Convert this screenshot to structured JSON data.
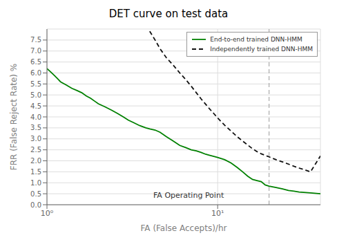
{
  "chart_data": {
    "type": "line",
    "title": "DET curve on test data",
    "x_label": "FA (False Accepts)/hr",
    "y_label": "FRR (False Reject Rate) %",
    "log": "x",
    "xlim": [
      1.0,
      40.0
    ],
    "xticks": [
      {
        "value": 1,
        "label": "10⁰"
      },
      {
        "value": 10,
        "label": "10¹"
      }
    ],
    "ylim": [
      0.0,
      8.0
    ],
    "yticks": [
      {
        "value": 0.0,
        "label": "0.0"
      },
      {
        "value": 0.5,
        "label": "0.5"
      },
      {
        "value": 1.0,
        "label": "1.0"
      },
      {
        "value": 1.5,
        "label": "1.5"
      },
      {
        "value": 2.0,
        "label": "2.0"
      },
      {
        "value": 2.5,
        "label": "2.5"
      },
      {
        "value": 3.0,
        "label": "3.0"
      },
      {
        "value": 3.5,
        "label": "3.5"
      },
      {
        "value": 4.0,
        "label": "4.0"
      },
      {
        "value": 4.5,
        "label": "4.5"
      },
      {
        "value": 5.0,
        "label": "5.0"
      },
      {
        "value": 5.5,
        "label": "5.5"
      },
      {
        "value": 6.0,
        "label": "6.0"
      },
      {
        "value": 6.5,
        "label": "6.5"
      },
      {
        "value": 7.0,
        "label": "7.0"
      },
      {
        "value": 7.5,
        "label": "7.5"
      }
    ],
    "grid": true,
    "legend": "upper right",
    "series": [
      {
        "name": "End-to-end trained DNN-HMM",
        "color": "#008000",
        "line_style": "solid",
        "x": [
          1.0,
          1.05,
          1.1,
          1.15,
          1.2,
          1.3,
          1.4,
          1.5,
          1.6,
          1.7,
          1.8,
          1.9,
          2.0,
          2.2,
          2.4,
          2.6,
          2.8,
          3.0,
          3.2,
          3.5,
          3.8,
          4.0,
          4.3,
          4.6,
          5.0,
          5.5,
          6.0,
          6.5,
          7.0,
          7.5,
          8.0,
          8.5,
          9.0,
          9.5,
          10.0,
          11.0,
          12.0,
          13.0,
          14.0,
          15.0,
          16.0,
          17.0,
          18.0,
          19.0,
          20.0,
          22.0,
          24.0,
          26.0,
          28.0,
          30.0,
          35.0,
          40.0
        ],
        "values": [
          6.2,
          6.05,
          5.9,
          5.75,
          5.6,
          5.45,
          5.3,
          5.2,
          5.1,
          4.95,
          4.85,
          4.72,
          4.6,
          4.45,
          4.3,
          4.15,
          4.0,
          3.85,
          3.75,
          3.6,
          3.5,
          3.45,
          3.4,
          3.3,
          3.1,
          2.9,
          2.7,
          2.6,
          2.5,
          2.45,
          2.38,
          2.3,
          2.25,
          2.2,
          2.15,
          2.05,
          1.9,
          1.7,
          1.5,
          1.3,
          1.15,
          1.1,
          1.05,
          0.9,
          0.85,
          0.78,
          0.72,
          0.65,
          0.62,
          0.58,
          0.54,
          0.5
        ]
      },
      {
        "name": "Independently trained DNN-HMM",
        "color": "#111111",
        "line_style": "dashed",
        "x": [
          4.0,
          4.3,
          4.6,
          5.0,
          5.5,
          6.0,
          6.5,
          7.0,
          7.5,
          8.0,
          8.5,
          9.0,
          9.5,
          10.0,
          11.0,
          12.0,
          13.0,
          14.0,
          15.0,
          16.0,
          17.0,
          18.0,
          19.0,
          20.0,
          22.0,
          24.0,
          26.0,
          28.0,
          30.0,
          35.0,
          40.0
        ],
        "values": [
          7.9,
          7.5,
          7.1,
          6.7,
          6.35,
          6.0,
          5.7,
          5.4,
          5.1,
          4.82,
          4.58,
          4.35,
          4.15,
          3.95,
          3.62,
          3.35,
          3.1,
          2.9,
          2.72,
          2.55,
          2.42,
          2.32,
          2.25,
          2.18,
          2.05,
          1.95,
          1.85,
          1.75,
          1.67,
          1.5,
          2.22
        ]
      }
    ],
    "annotations": [
      {
        "text": "FA Operating Point",
        "x": 4.2,
        "y": 0.22
      }
    ],
    "vlines": [
      {
        "x": 20.0,
        "color": "#aaaaaa",
        "line_style": "dashed"
      }
    ]
  }
}
